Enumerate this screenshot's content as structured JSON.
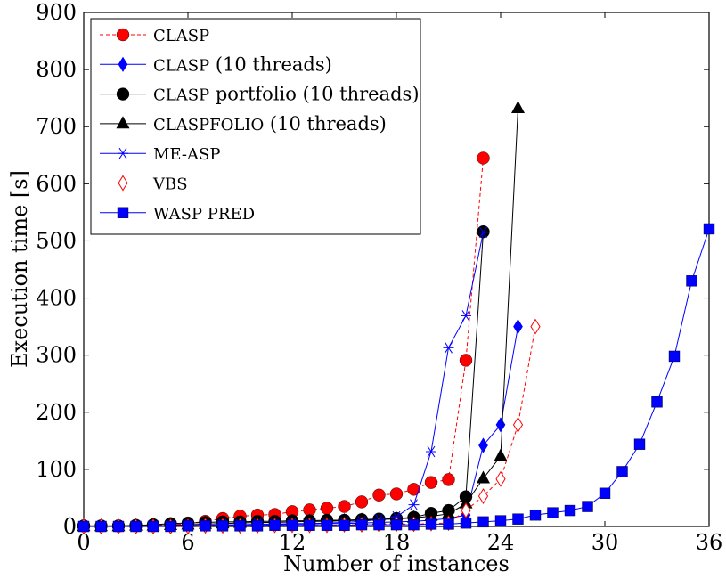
{
  "chart_data": {
    "type": "line",
    "xlabel": "Number of instances",
    "ylabel": "Execution time [s]",
    "xlim": [
      0,
      36
    ],
    "ylim": [
      0,
      900
    ],
    "xticks": [
      0,
      6,
      12,
      18,
      24,
      30,
      36
    ],
    "xtick_labels": [
      "0",
      "6",
      "12",
      "18",
      "24",
      "30",
      "36"
    ],
    "yticks": [
      0,
      100,
      200,
      300,
      400,
      500,
      600,
      700,
      800,
      900
    ],
    "ytick_labels": [
      "0",
      "100",
      "200",
      "300",
      "400",
      "500",
      "600",
      "700",
      "800",
      "900"
    ],
    "legend_position": "top-left",
    "series": [
      {
        "name": "CLASP",
        "color": "#ff0000",
        "marker": "circle-filled",
        "dashed": true,
        "x": [
          0,
          1,
          2,
          3,
          4,
          5,
          6,
          7,
          8,
          9,
          10,
          11,
          12,
          13,
          14,
          15,
          16,
          17,
          18,
          19,
          20,
          21,
          22,
          23
        ],
        "y": [
          1,
          1,
          1,
          1,
          2,
          3,
          5,
          9,
          14,
          18,
          20,
          21,
          26,
          29,
          32,
          35,
          43,
          55,
          57,
          65,
          77,
          82,
          291,
          645
        ]
      },
      {
        "name": "CLASP (10 threads)",
        "color": "#0000ff",
        "marker": "diamond-filled",
        "dashed": false,
        "x": [
          0,
          1,
          2,
          3,
          4,
          5,
          6,
          7,
          8,
          9,
          10,
          11,
          12,
          13,
          14,
          15,
          16,
          17,
          18,
          19,
          20,
          21,
          22,
          23,
          24,
          25
        ],
        "y": [
          0,
          0,
          0,
          0,
          0,
          0,
          1,
          1,
          2,
          2,
          3,
          3,
          4,
          4,
          5,
          5,
          6,
          7,
          8,
          9,
          11,
          14,
          20,
          142,
          178,
          350
        ]
      },
      {
        "name": "CLASP portfolio (10 threads)",
        "color": "#000000",
        "marker": "circle-filled",
        "dashed": false,
        "x": [
          0,
          1,
          2,
          3,
          4,
          5,
          6,
          7,
          8,
          9,
          10,
          11,
          12,
          13,
          14,
          15,
          16,
          17,
          18,
          19,
          20,
          21,
          22,
          23
        ],
        "y": [
          1,
          1,
          1,
          2,
          3,
          5,
          6,
          7,
          8,
          8,
          9,
          9,
          10,
          10,
          11,
          11,
          12,
          13,
          14,
          16,
          23,
          28,
          52,
          516
        ]
      },
      {
        "name": "CLASPFOLIO (10 threads)",
        "color": "#000000",
        "marker": "triangle-filled",
        "dashed": false,
        "x": [
          0,
          1,
          2,
          3,
          4,
          5,
          6,
          7,
          8,
          9,
          10,
          11,
          12,
          13,
          14,
          15,
          16,
          17,
          18,
          19,
          20,
          21,
          22,
          23,
          24,
          25
        ],
        "y": [
          0,
          0,
          0,
          1,
          1,
          2,
          3,
          4,
          5,
          6,
          7,
          7,
          8,
          9,
          9,
          10,
          11,
          12,
          13,
          15,
          18,
          22,
          40,
          84,
          123,
          732
        ]
      },
      {
        "name": "ME-ASP",
        "color": "#0000ff",
        "marker": "star",
        "dashed": false,
        "x": [
          0,
          1,
          2,
          3,
          4,
          5,
          6,
          7,
          8,
          9,
          10,
          11,
          12,
          13,
          14,
          15,
          16,
          17,
          18,
          19,
          20,
          21,
          22,
          23
        ],
        "y": [
          0,
          0,
          0,
          1,
          1,
          1,
          2,
          2,
          3,
          3,
          4,
          4,
          5,
          5,
          6,
          7,
          9,
          12,
          17,
          38,
          131,
          313,
          369,
          515
        ]
      },
      {
        "name": "VBS",
        "color": "#ff0000",
        "marker": "diamond-open",
        "dashed": true,
        "x": [
          0,
          1,
          2,
          3,
          4,
          5,
          6,
          7,
          8,
          9,
          10,
          11,
          12,
          13,
          14,
          15,
          16,
          17,
          18,
          19,
          20,
          21,
          22,
          23,
          24,
          25,
          26
        ],
        "y": [
          0,
          0,
          0,
          0,
          0,
          0,
          0,
          1,
          1,
          1,
          1,
          2,
          2,
          2,
          2,
          3,
          3,
          3,
          4,
          4,
          5,
          6,
          28,
          53,
          83,
          178,
          350
        ]
      },
      {
        "name": "WASP PRED",
        "color": "#0000ff",
        "marker": "square-filled",
        "dashed": false,
        "x": [
          0,
          1,
          2,
          3,
          4,
          5,
          6,
          7,
          8,
          9,
          10,
          11,
          12,
          13,
          14,
          15,
          16,
          17,
          18,
          19,
          20,
          21,
          22,
          23,
          24,
          25,
          26,
          27,
          28,
          29,
          30,
          31,
          32,
          33,
          34,
          35,
          36
        ],
        "y": [
          0,
          0,
          0,
          0,
          0,
          0,
          1,
          1,
          1,
          1,
          1,
          2,
          2,
          2,
          2,
          2,
          3,
          3,
          3,
          3,
          4,
          4,
          6,
          8,
          10,
          13,
          20,
          24,
          28,
          35,
          58,
          96,
          144,
          218,
          298,
          430,
          521
        ]
      }
    ],
    "legend_labels": [
      [
        "CLASP"
      ],
      [
        "CLASP",
        " (10 threads)"
      ],
      [
        "CLASP",
        " portfolio (10 threads)"
      ],
      [
        "CLASPFOLIO",
        " (10 threads)"
      ],
      [
        "ME-ASP"
      ],
      [
        "VBS"
      ],
      [
        "WASP P",
        "RED"
      ]
    ]
  }
}
